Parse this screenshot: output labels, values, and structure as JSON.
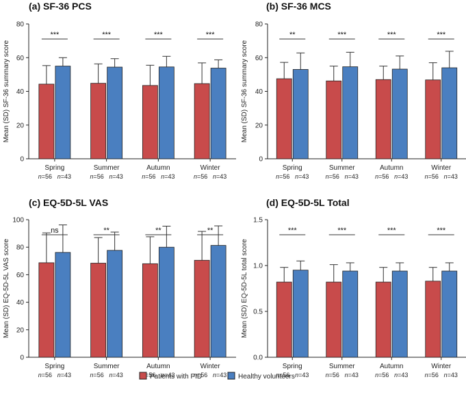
{
  "chart_data": [
    {
      "type": "bar",
      "title": "(a) SF-36 PCS",
      "ylabel": "Mean (SD) SF-36 summary score",
      "ylim": [
        0,
        80
      ],
      "yticks": [
        "0",
        "20",
        "40",
        "60",
        "80"
      ],
      "categories": [
        "Spring",
        "Summer",
        "Autumn",
        "Winter"
      ],
      "n_labels": [
        "n=56",
        "n=43"
      ],
      "series": [
        {
          "name": "Patients with PID",
          "values": [
            44.3,
            44.8,
            43.5,
            44.6
          ],
          "sd": [
            11.0,
            11.5,
            12.0,
            12.3
          ]
        },
        {
          "name": "Healthy volunteers",
          "values": [
            55.0,
            54.4,
            54.5,
            53.8
          ],
          "sd": [
            5.0,
            5.0,
            6.3,
            4.9
          ]
        }
      ],
      "significance": [
        "***",
        "***",
        "***",
        "***"
      ]
    },
    {
      "type": "bar",
      "title": "(b) SF-36 MCS",
      "ylabel": "Mean (SD) SF-36 summary score",
      "ylim": [
        0,
        80
      ],
      "yticks": [
        "0",
        "20",
        "40",
        "60",
        "80"
      ],
      "categories": [
        "Spring",
        "Summer",
        "Autumn",
        "Winter"
      ],
      "n_labels": [
        "n=56",
        "n=43"
      ],
      "series": [
        {
          "name": "Patients with PID",
          "values": [
            47.5,
            46.2,
            47.0,
            46.8
          ],
          "sd": [
            9.7,
            8.8,
            8.0,
            10.2
          ]
        },
        {
          "name": "Healthy volunteers",
          "values": [
            53.0,
            54.6,
            53.2,
            54.0
          ],
          "sd": [
            9.8,
            8.6,
            7.8,
            9.8
          ]
        }
      ],
      "significance": [
        "**",
        "***",
        "***",
        "***"
      ]
    },
    {
      "type": "bar",
      "title": "(c) EQ-5D-5L VAS",
      "ylabel": "Mean (SD) EQ-5D-5L VAS score",
      "ylim": [
        0,
        100
      ],
      "yticks": [
        "0",
        "20",
        "40",
        "60",
        "80",
        "100"
      ],
      "categories": [
        "Spring",
        "Summer",
        "Autumn",
        "Winter"
      ],
      "n_labels": [
        "n=56",
        "n=43"
      ],
      "series": [
        {
          "name": "Patients with PID",
          "values": [
            68.7,
            68.4,
            68.0,
            70.5
          ],
          "sd": [
            21.7,
            18.6,
            19.6,
            21.0
          ]
        },
        {
          "name": "Healthy volunteers",
          "values": [
            76.2,
            77.7,
            80.0,
            81.3
          ],
          "sd": [
            20.0,
            13.3,
            15.3,
            14.2
          ]
        }
      ],
      "significance": [
        "ns",
        "**",
        "**",
        "**"
      ]
    },
    {
      "type": "bar",
      "title": "(d) EQ-5D-5L Total",
      "ylabel": "Mean (SD) EQ-5D-5L total score",
      "ylim": [
        0,
        1.5
      ],
      "yticks": [
        "0.0",
        "0.5",
        "1.0",
        "1.5"
      ],
      "categories": [
        "Spring",
        "Summer",
        "Autumn",
        "Winter"
      ],
      "n_labels": [
        "n=56",
        "n=43"
      ],
      "series": [
        {
          "name": "Patients with PID",
          "values": [
            0.82,
            0.82,
            0.82,
            0.83
          ],
          "sd": [
            0.16,
            0.19,
            0.16,
            0.15
          ]
        },
        {
          "name": "Healthy volunteers",
          "values": [
            0.95,
            0.94,
            0.94,
            0.94
          ],
          "sd": [
            0.1,
            0.09,
            0.09,
            0.09
          ]
        }
      ],
      "significance": [
        "***",
        "***",
        "***",
        "***"
      ]
    }
  ],
  "legend": {
    "items": [
      {
        "label": "Patients with PID",
        "color": "#c84b4b"
      },
      {
        "label": "Healthy volunteers",
        "color": "#4a7fc0"
      }
    ]
  },
  "colors": {
    "patients": "#c84b4b",
    "healthy": "#4a7fc0"
  }
}
